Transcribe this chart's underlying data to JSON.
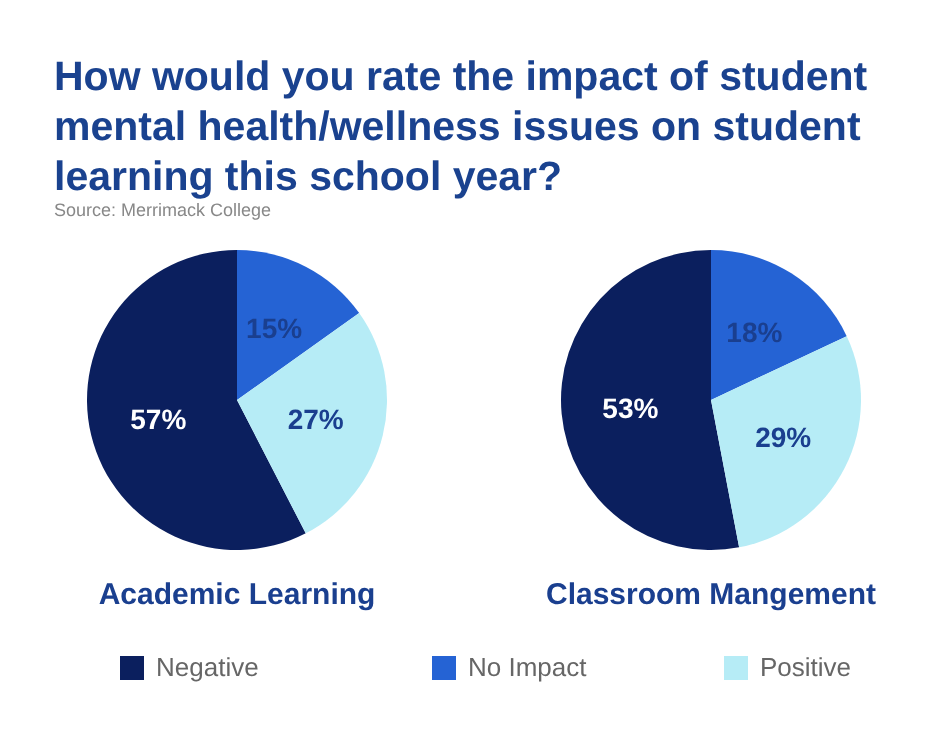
{
  "chart_data": [
    {
      "type": "pie",
      "title": "How would you rate the impact of student mental health/wellness issues on student learning this school year?",
      "annotations": [
        "Source: Merrimack College"
      ],
      "xlabel": "Academic Learning",
      "categories": [
        "Negative",
        "No Impact",
        "Positive"
      ],
      "values": [
        57,
        15,
        27
      ],
      "colors": [
        "#0b1f5e",
        "#2563d4",
        "#b6ecf6"
      ],
      "value_labels": [
        "57%",
        "15%",
        "27%"
      ],
      "legend": "bottom"
    },
    {
      "type": "pie",
      "xlabel": "Classroom Mangement",
      "categories": [
        null,
        null,
        null
      ],
      "values": [
        53,
        18,
        29
      ],
      "colors": [
        "#0b1f5e",
        "#2563d4",
        "#b6ecf6"
      ],
      "value_labels": [
        "53%",
        "18%",
        "29%"
      ]
    }
  ]
}
